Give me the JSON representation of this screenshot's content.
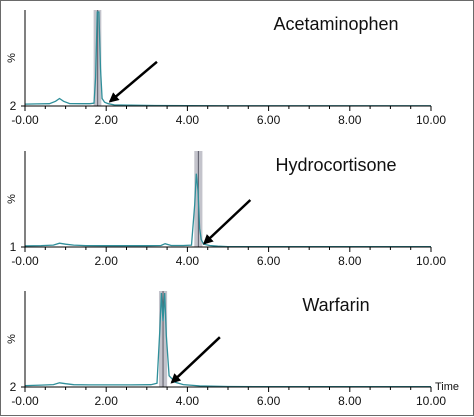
{
  "chart_data": {
    "type": "line",
    "x_ticks": [
      "-0.00",
      "2.00",
      "4.00",
      "6.00",
      "8.00",
      "10.00"
    ],
    "xlim": [
      0,
      10
    ],
    "x_axis_label": "Time",
    "y_axis_label": "%",
    "line_color": "#2f8f9a",
    "highlight_color": "#b9b9c2",
    "panels": [
      {
        "title": "Acetaminophen",
        "y_min_label": "2",
        "peak_center": 1.79,
        "peak_window": [
          1.69,
          1.88
        ],
        "arrow_tip": [
          2.1,
          5
        ],
        "arrow_tail": [
          3.25,
          47
        ],
        "series": {
          "x": [
            0.0,
            0.3,
            0.6,
            0.75,
            0.85,
            0.95,
            1.1,
            1.4,
            1.6,
            1.7,
            1.74,
            1.78,
            1.82,
            1.86,
            1.9,
            1.96,
            2.05,
            2.2,
            2.6,
            3.2,
            4.0,
            5.0,
            6.0,
            7.0,
            8.0,
            9.0,
            10.0
          ],
          "y": [
            2,
            2.2,
            2.4,
            5,
            8,
            5,
            2.6,
            2.4,
            2.4,
            3,
            30,
            100,
            100,
            40,
            8,
            4,
            2.4,
            1.2,
            0.8,
            0.5,
            0.3,
            0.2,
            0.2,
            0.2,
            0.2,
            0.2,
            0.2
          ]
        }
      },
      {
        "title": "Hydrocortisone",
        "y_min_label": "1",
        "peak_center": 4.27,
        "peak_window": [
          4.17,
          4.37
        ],
        "arrow_tip": [
          4.42,
          4
        ],
        "arrow_tail": [
          5.55,
          50
        ],
        "series": {
          "x": [
            0.0,
            0.4,
            0.7,
            0.85,
            1.0,
            1.2,
            1.5,
            2.0,
            2.5,
            3.0,
            3.35,
            3.45,
            3.6,
            3.9,
            4.1,
            4.18,
            4.22,
            4.26,
            4.3,
            4.34,
            4.4,
            4.55,
            4.75,
            5.0,
            6.0,
            7.0,
            8.0,
            9.0,
            10.0
          ],
          "y": [
            1.2,
            1.5,
            2,
            4,
            3,
            2,
            1.5,
            1.4,
            1.4,
            1.4,
            1.6,
            3.5,
            1.6,
            1.6,
            2,
            45,
            78,
            60,
            20,
            8,
            3,
            1.6,
            0.8,
            0.4,
            0.3,
            0.3,
            0.3,
            0.3,
            0.3
          ]
        }
      },
      {
        "title": "Warfarin",
        "y_min_label": "2",
        "peak_center": 3.4,
        "peak_window": [
          3.3,
          3.5
        ],
        "arrow_tip": [
          3.62,
          5
        ],
        "arrow_tail": [
          4.8,
          53
        ],
        "series": {
          "x": [
            0.0,
            0.4,
            0.7,
            0.85,
            1.0,
            1.2,
            1.6,
            2.0,
            2.6,
            3.1,
            3.25,
            3.32,
            3.36,
            3.4,
            3.44,
            3.48,
            3.55,
            3.7,
            3.9,
            4.3,
            5.0,
            6.0,
            7.0,
            8.0,
            9.0,
            10.0
          ],
          "y": [
            1.5,
            2,
            2.5,
            4.5,
            3.5,
            2.4,
            2.2,
            2.2,
            2.2,
            2.4,
            4,
            60,
            100,
            70,
            100,
            55,
            12,
            5,
            2.5,
            1.2,
            0.5,
            0.3,
            0.3,
            0.3,
            0.3,
            0.3
          ]
        }
      }
    ]
  }
}
